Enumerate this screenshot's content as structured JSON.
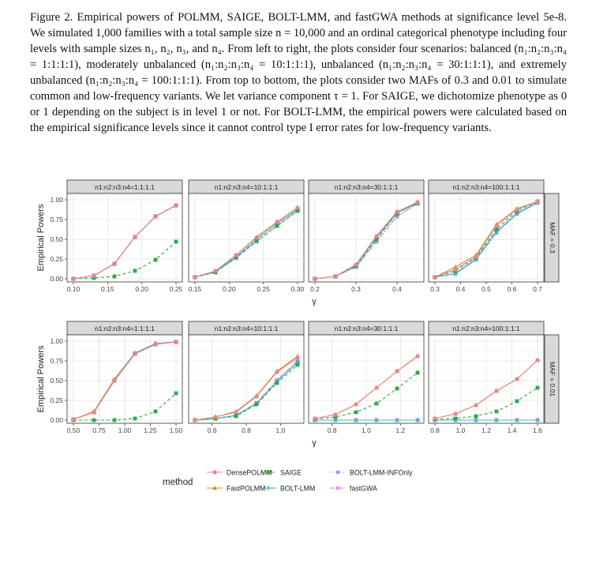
{
  "caption": "Figure 2. Empirical powers of POLMM, SAIGE, BOLT-LMM, and fastGWA methods at significance level 5e-8. We simulated 1,000 families with a total sample size n = 10,000 and an ordinal categorical phenotype including four levels with sample sizes n₁, n₂, n₃, and n₄. From left to right, the plots consider four scenarios: balanced (n₁:n₂:n₃:n₄ = 1:1:1:1), moderately unbalanced (n₁:n₂:n₃:n₄ = 10:1:1:1), unbalanced (n₁:n₂:n₃:n₄ = 30:1:1:1), and extremely unbalanced (n₁:n₂:n₃:n₄ = 100:1:1:1). From top to bottom, the plots consider two MAFs of 0.3 and 0.01 to simulate common and low-frequency variants. We let variance component τ = 1. For SAIGE, we dichotomize phenotype as 0 or 1 depending on the subject is in level 1 or not. For BOLT-LMM, the empirical powers were calculated based on the empirical significance levels since it cannot control type I error rates for low-frequency variants.",
  "colors": {
    "DensePOLMM": "#e8858a",
    "FastPOLMM": "#c9922c",
    "SAIGE": "#2fa84a",
    "BOLT-LMM": "#38b7c2",
    "BOLT-LMM-INFOnly": "#7b97e0",
    "fastGWA": "#e27fd6"
  },
  "legend": {
    "title": "method",
    "entries": [
      "DensePOLMM",
      "FastPOLMM",
      "SAIGE",
      "BOLT-LMM",
      "BOLT-LMM-INFOnly",
      "fastGWA"
    ]
  },
  "chart_data": {
    "type": "line",
    "ylabel": "Empirical Powers",
    "xlabel": "γ",
    "ylim": [
      0,
      1
    ],
    "yticks": [
      "0.00",
      "0.25",
      "0.50",
      "0.75",
      "1.00"
    ],
    "col_labels": [
      "n1:n2:n3:n4=1:1:1:1",
      "n1:n2:n3:n4=10:1:1:1",
      "n1:n2:n3:n4=30:1:1:1",
      "n1:n2:n3:n4=100:1:1:1"
    ],
    "row_labels": [
      "MAF = 0.3",
      "MAF = 0.01"
    ],
    "panels": [
      {
        "row": 0,
        "col": 0,
        "xlim": [
          0.1,
          0.25
        ],
        "xticks": [
          0.1,
          0.15,
          0.2,
          0.25
        ],
        "xtick_labels": [
          "0.10",
          "0.15",
          "0.20",
          "0.25"
        ],
        "x": [
          0.1,
          0.13,
          0.16,
          0.19,
          0.22,
          0.25
        ],
        "series": [
          {
            "name": "DensePOLMM",
            "values": [
              0.0,
              0.04,
              0.19,
              0.53,
              0.79,
              0.93
            ]
          },
          {
            "name": "FastPOLMM",
            "values": [
              0.0,
              0.04,
              0.19,
              0.53,
              0.79,
              0.93
            ]
          },
          {
            "name": "SAIGE",
            "values": [
              0.0,
              0.01,
              0.03,
              0.1,
              0.24,
              0.47
            ]
          },
          {
            "name": "BOLT-LMM",
            "values": [
              0.0,
              0.04,
              0.19,
              0.53,
              0.79,
              0.93
            ]
          },
          {
            "name": "BOLT-LMM-INFOnly",
            "values": [
              0.0,
              0.04,
              0.19,
              0.53,
              0.79,
              0.93
            ]
          },
          {
            "name": "fastGWA",
            "values": [
              0.0,
              0.04,
              0.19,
              0.53,
              0.79,
              0.93
            ]
          }
        ]
      },
      {
        "row": 0,
        "col": 1,
        "xlim": [
          0.15,
          0.3
        ],
        "xticks": [
          0.15,
          0.2,
          0.25,
          0.3
        ],
        "xtick_labels": [
          "0.15",
          "0.20",
          "0.25",
          "0.30"
        ],
        "x": [
          0.15,
          0.18,
          0.21,
          0.24,
          0.27,
          0.3
        ],
        "series": [
          {
            "name": "DensePOLMM",
            "values": [
              0.02,
              0.1,
              0.3,
              0.52,
              0.72,
              0.9
            ]
          },
          {
            "name": "FastPOLMM",
            "values": [
              0.02,
              0.1,
              0.3,
              0.53,
              0.72,
              0.9
            ]
          },
          {
            "name": "SAIGE",
            "values": [
              0.02,
              0.08,
              0.27,
              0.48,
              0.67,
              0.86
            ]
          },
          {
            "name": "BOLT-LMM",
            "values": [
              0.02,
              0.09,
              0.28,
              0.5,
              0.7,
              0.88
            ]
          },
          {
            "name": "BOLT-LMM-INFOnly",
            "values": [
              0.02,
              0.09,
              0.26,
              0.47,
              0.67,
              0.86
            ]
          },
          {
            "name": "fastGWA",
            "values": [
              0.02,
              0.09,
              0.26,
              0.47,
              0.67,
              0.86
            ]
          }
        ]
      },
      {
        "row": 0,
        "col": 2,
        "xlim": [
          0.2,
          0.45
        ],
        "xticks": [
          0.2,
          0.3,
          0.4
        ],
        "xtick_labels": [
          "0.2",
          "0.3",
          "0.4"
        ],
        "x": [
          0.2,
          0.25,
          0.3,
          0.35,
          0.4,
          0.45
        ],
        "series": [
          {
            "name": "DensePOLMM",
            "values": [
              0.0,
              0.03,
              0.18,
              0.54,
              0.85,
              0.97
            ]
          },
          {
            "name": "FastPOLMM",
            "values": [
              0.0,
              0.03,
              0.18,
              0.54,
              0.85,
              0.97
            ]
          },
          {
            "name": "SAIGE",
            "values": [
              0.0,
              0.03,
              0.16,
              0.5,
              0.83,
              0.96
            ]
          },
          {
            "name": "BOLT-LMM",
            "values": [
              0.0,
              0.03,
              0.17,
              0.52,
              0.83,
              0.96
            ]
          },
          {
            "name": "BOLT-LMM-INFOnly",
            "values": [
              0.0,
              0.03,
              0.15,
              0.47,
              0.79,
              0.95
            ]
          },
          {
            "name": "fastGWA",
            "values": [
              0.0,
              0.03,
              0.15,
              0.47,
              0.79,
              0.95
            ]
          }
        ]
      },
      {
        "row": 0,
        "col": 3,
        "xlim": [
          0.3,
          0.7
        ],
        "xticks": [
          0.3,
          0.4,
          0.5,
          0.6,
          0.7
        ],
        "xtick_labels": [
          "0.3",
          "0.4",
          "0.5",
          "0.6",
          "0.7"
        ],
        "x": [
          0.3,
          0.38,
          0.46,
          0.54,
          0.62,
          0.7
        ],
        "series": [
          {
            "name": "DensePOLMM",
            "values": [
              0.02,
              0.12,
              0.28,
              0.67,
              0.88,
              0.98
            ]
          },
          {
            "name": "FastPOLMM",
            "values": [
              0.02,
              0.15,
              0.3,
              0.69,
              0.89,
              0.98
            ]
          },
          {
            "name": "SAIGE",
            "values": [
              0.02,
              0.1,
              0.27,
              0.63,
              0.86,
              0.98
            ]
          },
          {
            "name": "BOLT-LMM",
            "values": [
              0.02,
              0.07,
              0.25,
              0.6,
              0.83,
              0.97
            ]
          },
          {
            "name": "BOLT-LMM-INFOnly",
            "values": [
              0.02,
              0.06,
              0.24,
              0.58,
              0.82,
              0.96
            ]
          },
          {
            "name": "fastGWA",
            "values": [
              0.02,
              0.06,
              0.24,
              0.58,
              0.82,
              0.96
            ]
          }
        ]
      },
      {
        "row": 1,
        "col": 0,
        "xlim": [
          0.5,
          1.5
        ],
        "xticks": [
          0.5,
          0.75,
          1.0,
          1.25,
          1.5
        ],
        "xtick_labels": [
          "0.50",
          "0.75",
          "1.00",
          "1.25",
          "1.50"
        ],
        "x": [
          0.5,
          0.7,
          0.9,
          1.1,
          1.3,
          1.5
        ],
        "series": [
          {
            "name": "DensePOLMM",
            "values": [
              0.01,
              0.1,
              0.51,
              0.85,
              0.97,
              0.99
            ]
          },
          {
            "name": "FastPOLMM",
            "values": [
              0.01,
              0.11,
              0.52,
              0.85,
              0.97,
              0.99
            ]
          },
          {
            "name": "SAIGE",
            "values": [
              0.0,
              0.0,
              0.0,
              0.02,
              0.11,
              0.34
            ]
          },
          {
            "name": "BOLT-LMM",
            "values": [
              0.01,
              0.1,
              0.5,
              0.84,
              0.96,
              0.99
            ]
          },
          {
            "name": "BOLT-LMM-INFOnly",
            "values": [
              0.01,
              0.1,
              0.5,
              0.84,
              0.96,
              0.99
            ]
          },
          {
            "name": "fastGWA",
            "values": [
              0.01,
              0.1,
              0.5,
              0.84,
              0.96,
              0.99
            ]
          }
        ]
      },
      {
        "row": 1,
        "col": 1,
        "xlim": [
          0.5,
          1.1
        ],
        "xticks": [
          0.6,
          0.8,
          1.0
        ],
        "xtick_labels": [
          "0.6",
          "0.8",
          "1.0"
        ],
        "x": [
          0.5,
          0.62,
          0.74,
          0.86,
          0.98,
          1.1
        ],
        "series": [
          {
            "name": "DensePOLMM",
            "values": [
              0.0,
              0.04,
              0.1,
              0.3,
              0.61,
              0.79
            ]
          },
          {
            "name": "FastPOLMM",
            "values": [
              0.0,
              0.04,
              0.11,
              0.31,
              0.62,
              0.81
            ]
          },
          {
            "name": "SAIGE",
            "values": [
              0.0,
              0.02,
              0.05,
              0.2,
              0.47,
              0.7
            ]
          },
          {
            "name": "BOLT-LMM",
            "values": [
              0.0,
              0.02,
              0.06,
              0.21,
              0.49,
              0.73
            ]
          },
          {
            "name": "BOLT-LMM-INFOnly",
            "values": [
              0.0,
              0.02,
              0.06,
              0.21,
              0.5,
              0.74
            ]
          },
          {
            "name": "fastGWA",
            "values": [
              0.0,
              0.02,
              0.06,
              0.22,
              0.51,
              0.75
            ]
          }
        ]
      },
      {
        "row": 1,
        "col": 2,
        "xlim": [
          0.7,
          1.3
        ],
        "xticks": [
          0.8,
          1.0,
          1.2
        ],
        "xtick_labels": [
          "0.8",
          "1.0",
          "1.2"
        ],
        "x": [
          0.7,
          0.82,
          0.94,
          1.06,
          1.18,
          1.3
        ],
        "series": [
          {
            "name": "DensePOLMM",
            "values": [
              0.02,
              0.07,
              0.2,
              0.41,
              0.62,
              0.81
            ]
          },
          {
            "name": "FastPOLMM",
            "values": [
              0.02,
              0.07,
              0.2,
              0.41,
              0.62,
              0.81
            ]
          },
          {
            "name": "SAIGE",
            "values": [
              0.01,
              0.04,
              0.1,
              0.21,
              0.4,
              0.6
            ]
          },
          {
            "name": "BOLT-LMM",
            "values": [
              0.0,
              0.0,
              0.0,
              0.0,
              0.0,
              0.0
            ]
          },
          {
            "name": "BOLT-LMM-INFOnly",
            "values": [
              0.0,
              0.0,
              0.0,
              0.0,
              0.0,
              0.0
            ]
          },
          {
            "name": "fastGWA",
            "values": [
              0.0,
              0.0,
              0.0,
              0.0,
              0.0,
              0.0
            ]
          }
        ]
      },
      {
        "row": 1,
        "col": 3,
        "xlim": [
          0.8,
          1.6
        ],
        "xticks": [
          0.8,
          1.0,
          1.2,
          1.4,
          1.6
        ],
        "xtick_labels": [
          "0.8",
          "1.0",
          "1.2",
          "1.4",
          "1.6"
        ],
        "x": [
          0.8,
          0.96,
          1.12,
          1.28,
          1.44,
          1.6
        ],
        "series": [
          {
            "name": "DensePOLMM",
            "values": [
              0.02,
              0.08,
              0.19,
              0.37,
              0.52,
              0.76
            ]
          },
          {
            "name": "FastPOLMM",
            "values": [
              0.02,
              0.08,
              0.19,
              0.37,
              0.52,
              0.76
            ]
          },
          {
            "name": "SAIGE",
            "values": [
              0.01,
              0.02,
              0.05,
              0.11,
              0.24,
              0.41
            ]
          },
          {
            "name": "BOLT-LMM",
            "values": [
              0.0,
              0.0,
              0.0,
              0.0,
              0.0,
              0.0
            ]
          },
          {
            "name": "BOLT-LMM-INFOnly",
            "values": [
              0.0,
              0.0,
              0.0,
              0.0,
              0.0,
              0.0
            ]
          },
          {
            "name": "fastGWA",
            "values": [
              0.0,
              0.0,
              0.0,
              0.0,
              0.0,
              0.0
            ]
          }
        ]
      }
    ]
  }
}
